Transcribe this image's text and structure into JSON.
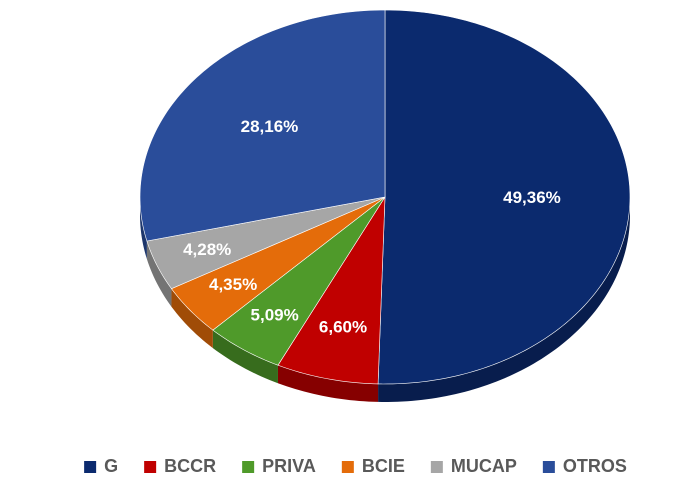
{
  "chart_data": {
    "type": "pie",
    "categories": [
      "G",
      "BCCR",
      "PRIVA",
      "BCIE",
      "MUCAP",
      "OTROS"
    ],
    "values": [
      49.36,
      6.6,
      5.09,
      4.35,
      4.28,
      28.16
    ],
    "value_labels": [
      "49,36%",
      "6,60%",
      "5,09%",
      "4,35%",
      "4,28%",
      "28,16%"
    ],
    "colors": [
      "#0b2a6e",
      "#c00000",
      "#4f9a2a",
      "#e46c0a",
      "#a6a6a6",
      "#2a4d9a"
    ],
    "legend": "bottom"
  }
}
